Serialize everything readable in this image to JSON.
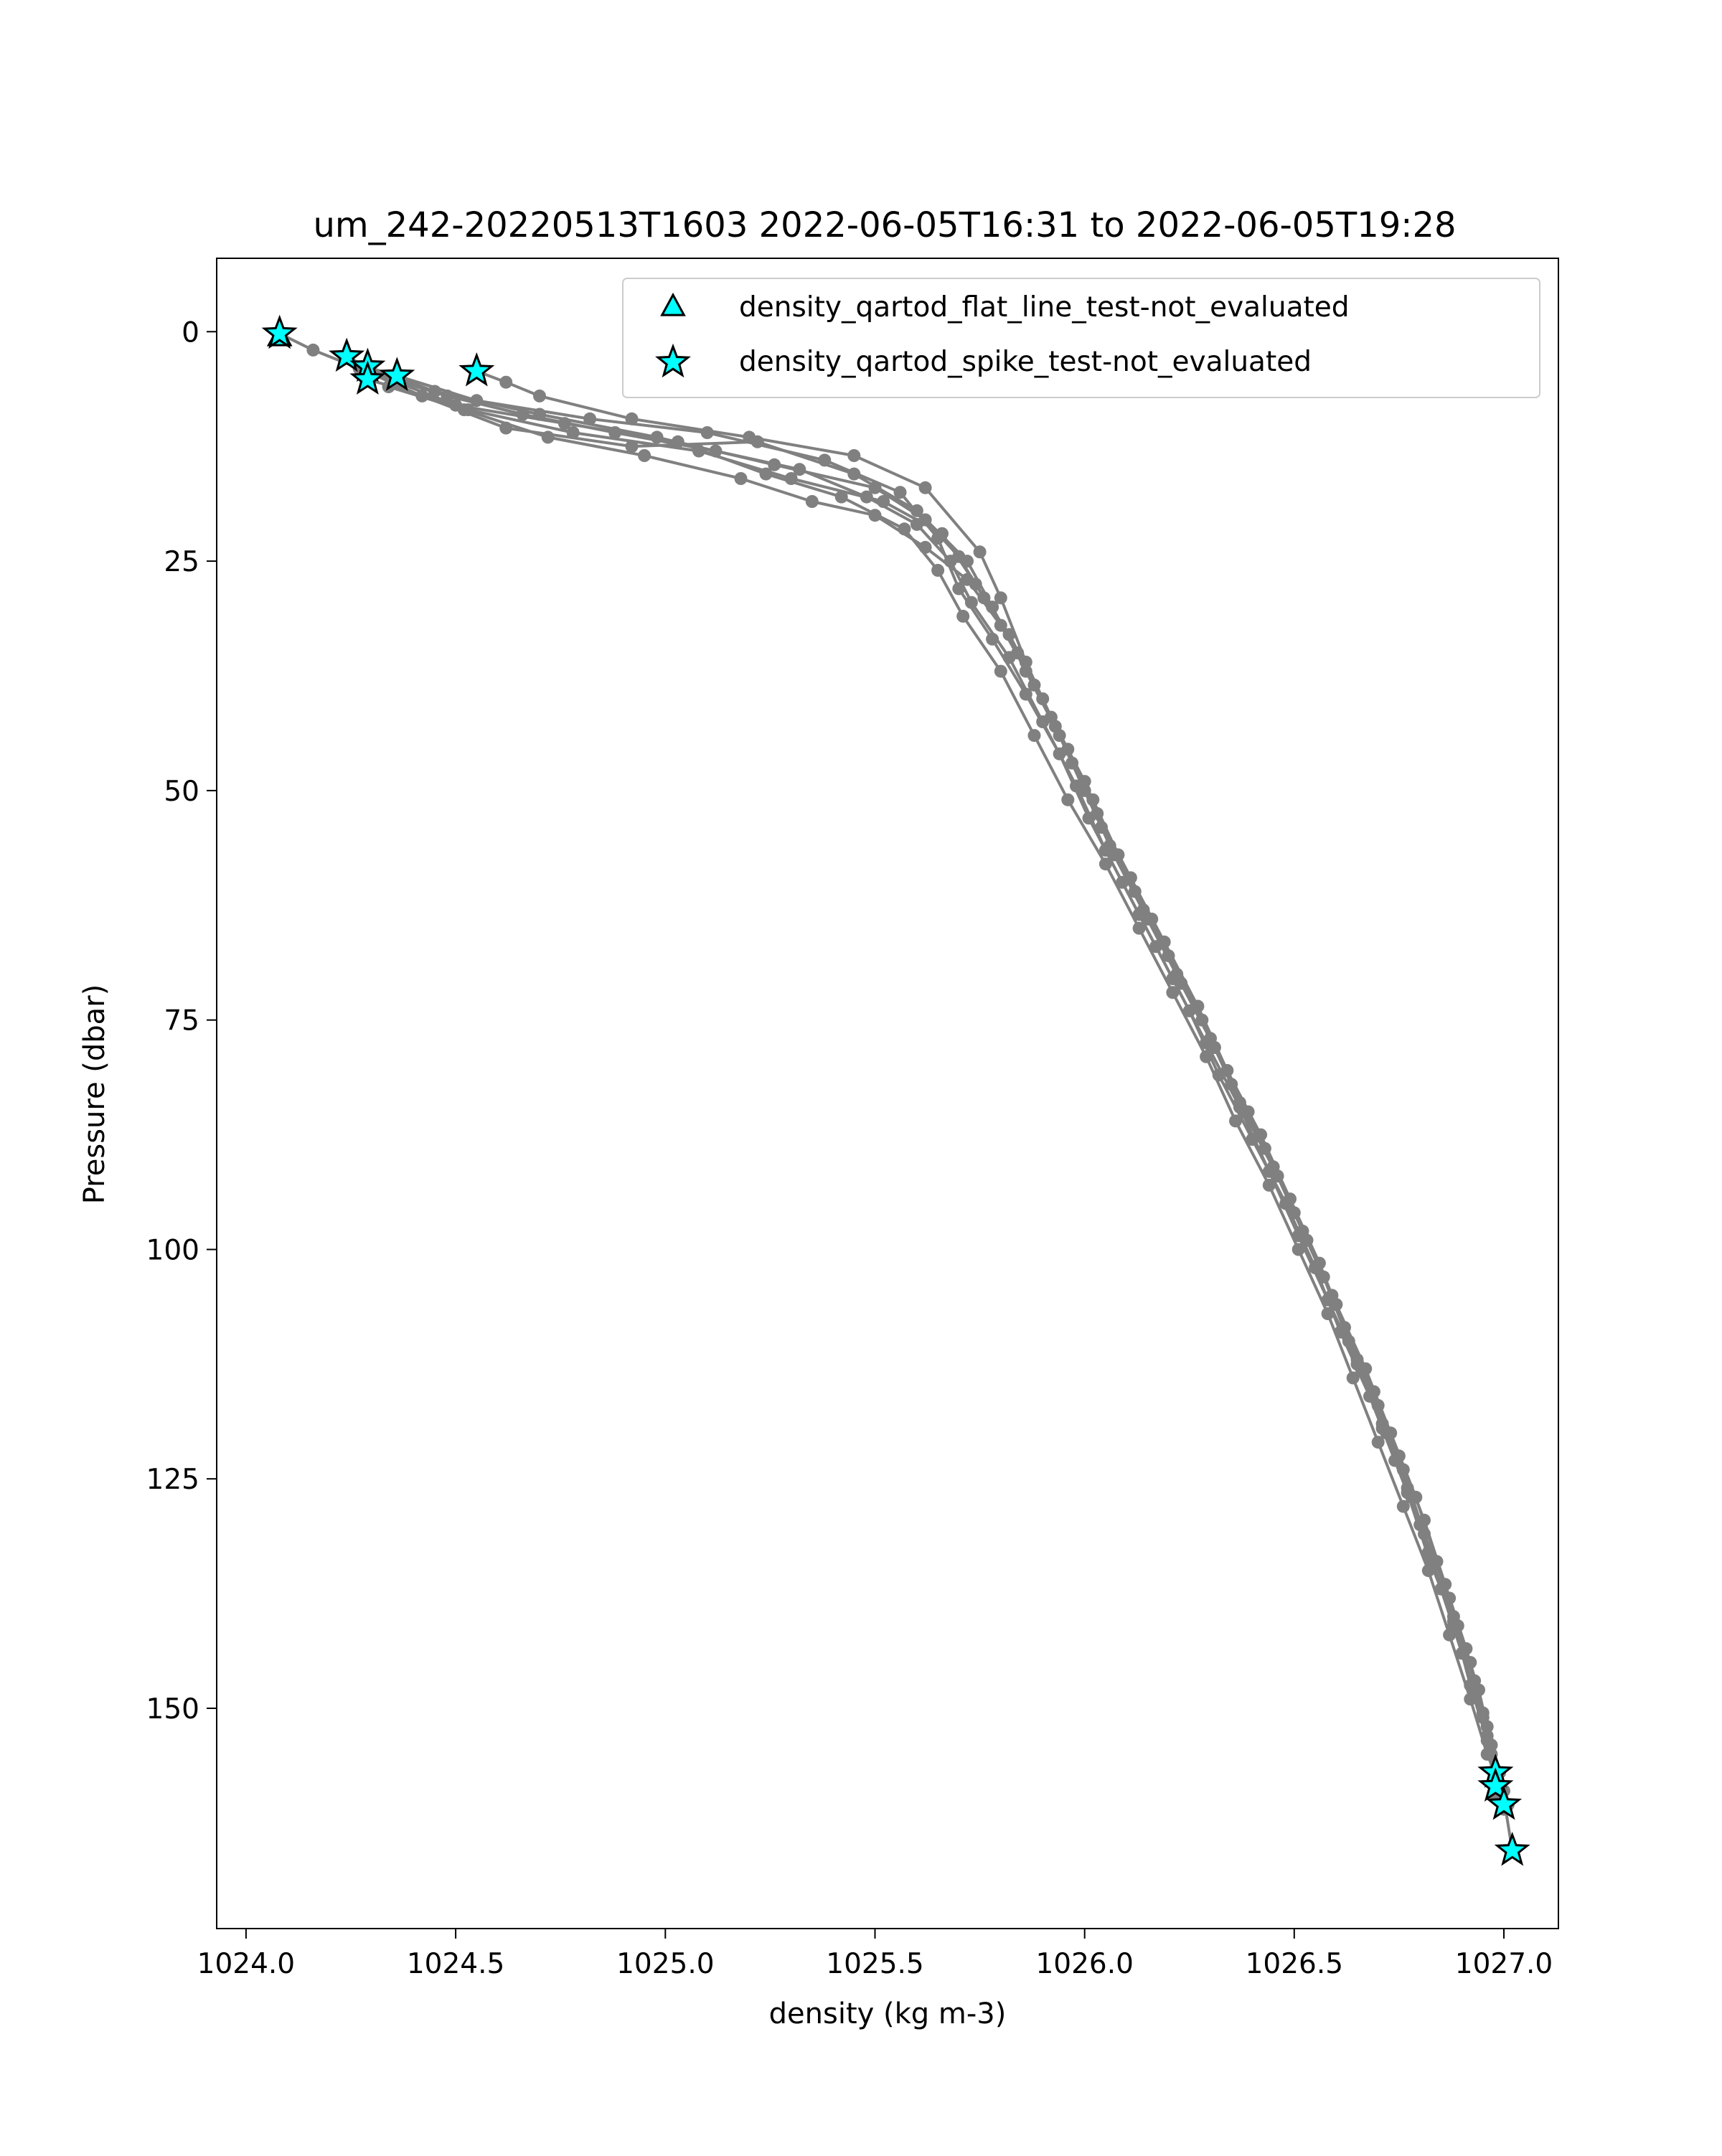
{
  "chart_data": {
    "type": "line",
    "title": "um_242-20220513T1603 2022-06-05T16:31 to 2022-06-05T19:28",
    "xlabel": "density (kg m-3)",
    "ylabel": "Pressure (dbar)",
    "xlim": [
      1023.93,
      1027.13
    ],
    "ylim": [
      174,
      -8
    ],
    "y_inverted": true,
    "x_ticks": [
      1024.0,
      1024.5,
      1025.0,
      1025.5,
      1026.0,
      1026.5,
      1027.0
    ],
    "x_tick_labels": [
      "1024.0",
      "1024.5",
      "1025.0",
      "1025.5",
      "1026.0",
      "1026.5",
      "1027.0"
    ],
    "y_ticks": [
      0,
      25,
      50,
      75,
      100,
      125,
      150
    ],
    "y_tick_labels": [
      "0",
      "25",
      "50",
      "75",
      "100",
      "125",
      "150"
    ],
    "grid": false,
    "legend_position": "top-right",
    "colors": {
      "profile": "#808080",
      "flag_fill": "#00ffff",
      "flag_edge": "#000000",
      "legend_border": "#cccccc"
    },
    "profiles": [
      [
        [
          1024.08,
          0.2
        ],
        [
          1024.16,
          2.0
        ],
        [
          1024.27,
          4.0
        ],
        [
          1024.42,
          7.0
        ],
        [
          1024.62,
          10.5
        ],
        [
          1024.92,
          12.5
        ],
        [
          1025.22,
          12.0
        ],
        [
          1025.45,
          15.5
        ],
        [
          1025.6,
          19.5
        ],
        [
          1025.72,
          25.0
        ],
        [
          1025.78,
          30.0
        ],
        [
          1025.86,
          37.0
        ],
        [
          1025.94,
          44.0
        ],
        [
          1026.02,
          51.0
        ],
        [
          1026.08,
          57.0
        ],
        [
          1026.16,
          64.0
        ],
        [
          1026.23,
          71.0
        ],
        [
          1026.31,
          78.0
        ],
        [
          1026.38,
          85.0
        ],
        [
          1026.46,
          92.0
        ],
        [
          1026.53,
          99.0
        ],
        [
          1026.6,
          106.0
        ],
        [
          1026.66,
          113.0
        ],
        [
          1026.72,
          120.0
        ],
        [
          1026.78,
          127.0
        ],
        [
          1026.83,
          134.0
        ],
        [
          1026.88,
          141.0
        ],
        [
          1026.93,
          148.0
        ],
        [
          1026.97,
          155.0
        ],
        [
          1027.0,
          161.0
        ]
      ],
      [
        [
          1024.24,
          2.7
        ],
        [
          1024.36,
          5.5
        ],
        [
          1024.53,
          8.5
        ],
        [
          1024.78,
          11.0
        ],
        [
          1025.08,
          13.0
        ],
        [
          1025.3,
          16.0
        ],
        [
          1025.52,
          18.5
        ],
        [
          1025.66,
          22.0
        ],
        [
          1025.74,
          27.5
        ],
        [
          1025.82,
          33.0
        ],
        [
          1025.9,
          40.0
        ],
        [
          1025.97,
          47.0
        ],
        [
          1026.04,
          54.0
        ],
        [
          1026.12,
          61.0
        ],
        [
          1026.2,
          68.0
        ],
        [
          1026.28,
          75.0
        ],
        [
          1026.35,
          82.0
        ],
        [
          1026.43,
          89.0
        ],
        [
          1026.5,
          96.0
        ],
        [
          1026.57,
          103.0
        ],
        [
          1026.63,
          110.0
        ],
        [
          1026.7,
          117.0
        ],
        [
          1026.76,
          124.0
        ],
        [
          1026.81,
          131.0
        ],
        [
          1026.87,
          138.0
        ],
        [
          1026.92,
          145.0
        ],
        [
          1026.96,
          152.0
        ],
        [
          1026.98,
          158.5
        ]
      ],
      [
        [
          1024.29,
          3.8
        ],
        [
          1024.45,
          6.5
        ],
        [
          1024.7,
          9.0
        ],
        [
          1024.98,
          11.5
        ],
        [
          1025.26,
          14.5
        ],
        [
          1025.5,
          17.0
        ],
        [
          1025.62,
          20.5
        ],
        [
          1025.7,
          24.5
        ],
        [
          1025.76,
          29.0
        ],
        [
          1025.84,
          35.0
        ],
        [
          1025.92,
          42.0
        ],
        [
          1026.0,
          49.0
        ],
        [
          1026.06,
          56.0
        ],
        [
          1026.14,
          63.0
        ],
        [
          1026.22,
          70.0
        ],
        [
          1026.3,
          77.0
        ],
        [
          1026.37,
          84.0
        ],
        [
          1026.45,
          91.0
        ],
        [
          1026.52,
          98.0
        ],
        [
          1026.59,
          105.0
        ],
        [
          1026.65,
          112.0
        ],
        [
          1026.71,
          119.0
        ],
        [
          1026.77,
          126.0
        ],
        [
          1026.82,
          133.0
        ],
        [
          1026.88,
          140.0
        ],
        [
          1026.93,
          147.0
        ],
        [
          1026.96,
          153.0
        ],
        [
          1026.98,
          159.5
        ]
      ],
      [
        [
          1024.29,
          5.2
        ],
        [
          1024.5,
          8.0
        ],
        [
          1024.76,
          10.0
        ],
        [
          1025.03,
          12.0
        ],
        [
          1025.24,
          15.5
        ],
        [
          1025.42,
          18.0
        ],
        [
          1025.57,
          21.5
        ],
        [
          1025.65,
          26.0
        ],
        [
          1025.71,
          31.0
        ],
        [
          1025.8,
          37.0
        ],
        [
          1025.88,
          44.0
        ],
        [
          1025.96,
          51.0
        ],
        [
          1026.05,
          58.0
        ],
        [
          1026.13,
          65.0
        ],
        [
          1026.21,
          72.0
        ],
        [
          1026.29,
          79.0
        ],
        [
          1026.36,
          86.0
        ],
        [
          1026.44,
          93.0
        ],
        [
          1026.51,
          100.0
        ],
        [
          1026.58,
          107.0
        ],
        [
          1026.64,
          114.0
        ],
        [
          1026.7,
          121.0
        ],
        [
          1026.76,
          128.0
        ],
        [
          1026.82,
          135.0
        ],
        [
          1026.87,
          142.0
        ],
        [
          1026.92,
          149.0
        ],
        [
          1026.96,
          155.0
        ],
        [
          1027.01,
          160.5
        ]
      ],
      [
        [
          1024.36,
          4.8
        ],
        [
          1024.55,
          7.5
        ],
        [
          1024.82,
          9.5
        ],
        [
          1025.1,
          11.0
        ],
        [
          1025.38,
          14.0
        ],
        [
          1025.56,
          17.5
        ],
        [
          1025.65,
          22.5
        ],
        [
          1025.7,
          28.0
        ],
        [
          1025.78,
          33.5
        ],
        [
          1025.86,
          39.5
        ],
        [
          1025.94,
          46.0
        ],
        [
          1026.01,
          53.0
        ],
        [
          1026.09,
          60.0
        ],
        [
          1026.17,
          67.0
        ],
        [
          1026.25,
          74.0
        ],
        [
          1026.32,
          81.0
        ],
        [
          1026.4,
          88.0
        ],
        [
          1026.48,
          95.0
        ],
        [
          1026.55,
          102.0
        ],
        [
          1026.61,
          109.0
        ],
        [
          1026.68,
          116.0
        ],
        [
          1026.74,
          123.0
        ],
        [
          1026.8,
          130.0
        ],
        [
          1026.85,
          137.0
        ],
        [
          1026.9,
          144.0
        ],
        [
          1026.95,
          151.0
        ],
        [
          1026.99,
          157.0
        ],
        [
          1027.02,
          165.5
        ]
      ],
      [
        [
          1024.55,
          4.3
        ],
        [
          1024.62,
          5.5
        ],
        [
          1024.7,
          7.0
        ],
        [
          1024.92,
          9.5
        ],
        [
          1025.2,
          11.5
        ],
        [
          1025.45,
          13.5
        ],
        [
          1025.62,
          17.0
        ],
        [
          1025.75,
          24.0
        ],
        [
          1025.8,
          29.0
        ],
        [
          1025.86,
          36.0
        ],
        [
          1025.93,
          43.0
        ],
        [
          1026.0,
          50.0
        ],
        [
          1026.07,
          57.0
        ],
        [
          1026.15,
          64.0
        ],
        [
          1026.23,
          71.0
        ],
        [
          1026.31,
          78.0
        ],
        [
          1026.39,
          85.0
        ],
        [
          1026.46,
          92.0
        ],
        [
          1026.53,
          99.0
        ],
        [
          1026.6,
          106.0
        ],
        [
          1026.67,
          113.0
        ],
        [
          1026.73,
          120.0
        ],
        [
          1026.79,
          127.0
        ],
        [
          1026.84,
          134.0
        ],
        [
          1026.89,
          141.0
        ],
        [
          1026.94,
          148.0
        ],
        [
          1026.97,
          154.0
        ],
        [
          1027.0,
          159.0
        ]
      ],
      [
        [
          1024.3,
          4.5
        ],
        [
          1024.48,
          7.0
        ],
        [
          1024.66,
          9.0
        ],
        [
          1024.88,
          11.0
        ],
        [
          1025.12,
          13.0
        ],
        [
          1025.32,
          15.0
        ],
        [
          1025.48,
          18.0
        ],
        [
          1025.6,
          21.0
        ],
        [
          1025.68,
          25.0
        ],
        [
          1025.73,
          29.5
        ],
        [
          1025.82,
          35.5
        ],
        [
          1025.9,
          42.5
        ],
        [
          1025.98,
          49.5
        ],
        [
          1026.05,
          56.5
        ],
        [
          1026.13,
          63.5
        ],
        [
          1026.21,
          70.5
        ],
        [
          1026.29,
          77.5
        ],
        [
          1026.37,
          84.5
        ],
        [
          1026.44,
          91.5
        ],
        [
          1026.51,
          98.5
        ],
        [
          1026.58,
          105.5
        ],
        [
          1026.65,
          112.5
        ],
        [
          1026.71,
          119.5
        ],
        [
          1026.77,
          126.5
        ],
        [
          1026.82,
          133.5
        ],
        [
          1026.88,
          140.5
        ],
        [
          1026.92,
          147.5
        ],
        [
          1026.96,
          153.5
        ]
      ],
      [
        [
          1024.34,
          6.0
        ],
        [
          1024.52,
          8.5
        ],
        [
          1024.72,
          11.5
        ],
        [
          1024.95,
          13.5
        ],
        [
          1025.18,
          16.0
        ],
        [
          1025.35,
          18.5
        ],
        [
          1025.5,
          20.0
        ],
        [
          1025.62,
          23.5
        ],
        [
          1025.72,
          27.0
        ],
        [
          1025.8,
          32.0
        ],
        [
          1025.88,
          38.5
        ],
        [
          1025.96,
          45.5
        ],
        [
          1026.03,
          52.5
        ],
        [
          1026.11,
          59.5
        ],
        [
          1026.19,
          66.5
        ],
        [
          1026.27,
          73.5
        ],
        [
          1026.34,
          80.5
        ],
        [
          1026.42,
          87.5
        ],
        [
          1026.49,
          94.5
        ],
        [
          1026.56,
          101.5
        ],
        [
          1026.62,
          108.5
        ],
        [
          1026.69,
          115.5
        ],
        [
          1026.75,
          122.5
        ],
        [
          1026.81,
          129.5
        ],
        [
          1026.86,
          136.5
        ],
        [
          1026.91,
          143.5
        ],
        [
          1026.95,
          150.5
        ]
      ]
    ],
    "series": [
      {
        "name": "density_qartod_flat_line_test-not_evaluated",
        "marker": "triangle",
        "points": [
          [
            1024.08,
            0.6
          ]
        ]
      },
      {
        "name": "density_qartod_spike_test-not_evaluated",
        "marker": "star",
        "points": [
          [
            1024.08,
            0.2
          ],
          [
            1024.24,
            2.7
          ],
          [
            1024.29,
            3.8
          ],
          [
            1024.29,
            5.2
          ],
          [
            1024.36,
            4.8
          ],
          [
            1024.55,
            4.3
          ],
          [
            1026.98,
            157.0
          ],
          [
            1026.98,
            158.5
          ],
          [
            1027.0,
            160.5
          ],
          [
            1027.02,
            165.5
          ]
        ]
      }
    ]
  }
}
